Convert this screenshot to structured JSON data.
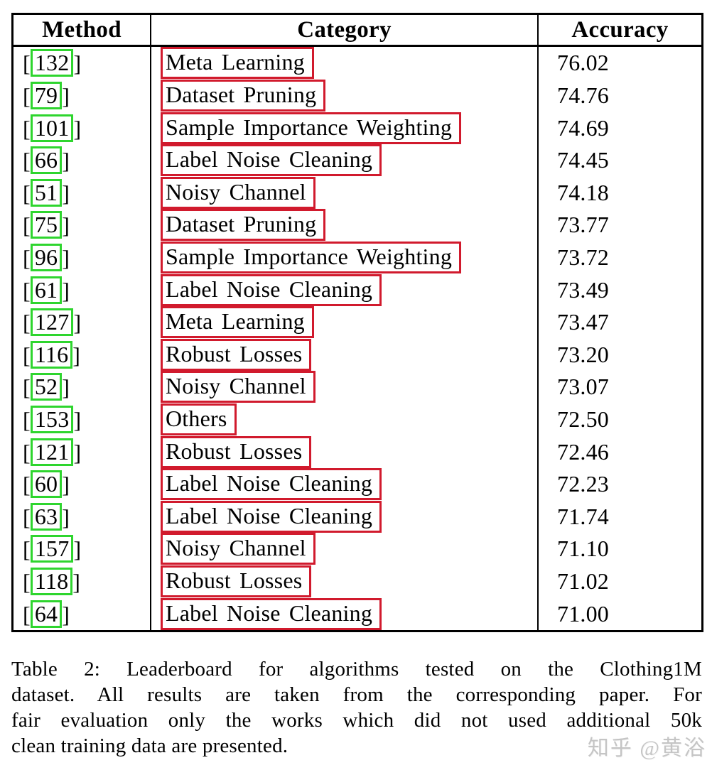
{
  "colors": {
    "citation_box_green": "#2ed52e",
    "category_box_red": "#d11a2d",
    "table_border": "#000000",
    "watermark_gray": "#c5c5c5"
  },
  "table": {
    "headers": [
      "Method",
      "Category",
      "Accuracy"
    ],
    "bracket_open": "[",
    "bracket_close": "]",
    "rows": [
      {
        "ref": "132",
        "category": "Meta Learning",
        "accuracy": "76.02"
      },
      {
        "ref": "79",
        "category": "Dataset Pruning",
        "accuracy": "74.76"
      },
      {
        "ref": "101",
        "category": "Sample Importance Weighting",
        "accuracy": "74.69"
      },
      {
        "ref": "66",
        "category": "Label Noise Cleaning",
        "accuracy": "74.45"
      },
      {
        "ref": "51",
        "category": "Noisy Channel",
        "accuracy": "74.18"
      },
      {
        "ref": "75",
        "category": "Dataset Pruning",
        "accuracy": "73.77"
      },
      {
        "ref": "96",
        "category": "Sample Importance Weighting",
        "accuracy": "73.72"
      },
      {
        "ref": "61",
        "category": "Label Noise Cleaning",
        "accuracy": "73.49"
      },
      {
        "ref": "127",
        "category": "Meta Learning",
        "accuracy": "73.47"
      },
      {
        "ref": "116",
        "category": "Robust Losses",
        "accuracy": "73.20"
      },
      {
        "ref": "52",
        "category": "Noisy Channel",
        "accuracy": "73.07"
      },
      {
        "ref": "153",
        "category": "Others",
        "accuracy": "72.50"
      },
      {
        "ref": "121",
        "category": "Robust Losses",
        "accuracy": "72.46"
      },
      {
        "ref": "60",
        "category": "Label Noise Cleaning",
        "accuracy": "72.23"
      },
      {
        "ref": "63",
        "category": "Label Noise Cleaning",
        "accuracy": "71.74"
      },
      {
        "ref": "157",
        "category": "Noisy Channel",
        "accuracy": "71.10"
      },
      {
        "ref": "118",
        "category": "Robust Losses",
        "accuracy": "71.02"
      },
      {
        "ref": "64",
        "category": "Label Noise Cleaning",
        "accuracy": "71.00"
      }
    ]
  },
  "caption": {
    "lines": [
      "Table 2:  Leaderboard for algorithms tested on the Clothing1M",
      "dataset.  All results are taken from the corresponding paper.  For",
      "fair evaluation only the works which did not used additional 50k",
      "clean training data are presented."
    ]
  },
  "watermark": {
    "text": "知乎 @黄浴"
  }
}
